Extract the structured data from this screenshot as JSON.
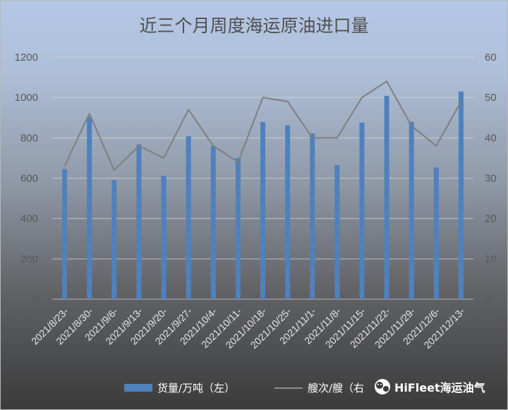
{
  "chart_data": {
    "type": "bar",
    "title": "近三个月周度海运原油进口量",
    "categories": [
      "2021/8/23-",
      "2021/8/30-",
      "2021/9/6-",
      "2021/9/13-",
      "2021/9/20-",
      "2021/9/27-",
      "2021/10/4-",
      "2021/10/11-",
      "2021/10/18-",
      "2021/10/25-",
      "2021/11/1-",
      "2021/11/8-",
      "2021/11/15-",
      "2021/11/22-",
      "2021/11/29-",
      "2021/12/6-",
      "2021/12/13-"
    ],
    "series": [
      {
        "name": "货量/万吨（左）",
        "type": "bar",
        "axis": "left",
        "color": "#4f81bd",
        "values": [
          645,
          905,
          590,
          768,
          612,
          808,
          760,
          700,
          878,
          862,
          822,
          665,
          876,
          1008,
          880,
          653,
          1030
        ]
      },
      {
        "name": "艘次/艘（右",
        "type": "line",
        "axis": "right",
        "color": "#7f7f7f",
        "values": [
          33,
          46,
          32,
          38,
          35,
          47,
          38,
          34,
          50,
          49,
          40,
          40,
          50,
          54,
          43,
          38,
          49
        ]
      }
    ],
    "yleft": {
      "ylim": [
        0,
        1200
      ],
      "ticks": [
        0,
        200,
        400,
        600,
        800,
        1000,
        1200
      ]
    },
    "yright": {
      "ylim": [
        0,
        60
      ],
      "ticks": [
        0,
        10,
        20,
        30,
        40,
        50,
        60
      ]
    },
    "grid": true,
    "legend_position": "bottom"
  },
  "watermark": {
    "text": "HiFleet海运油气",
    "icon": "wechat-icon"
  }
}
